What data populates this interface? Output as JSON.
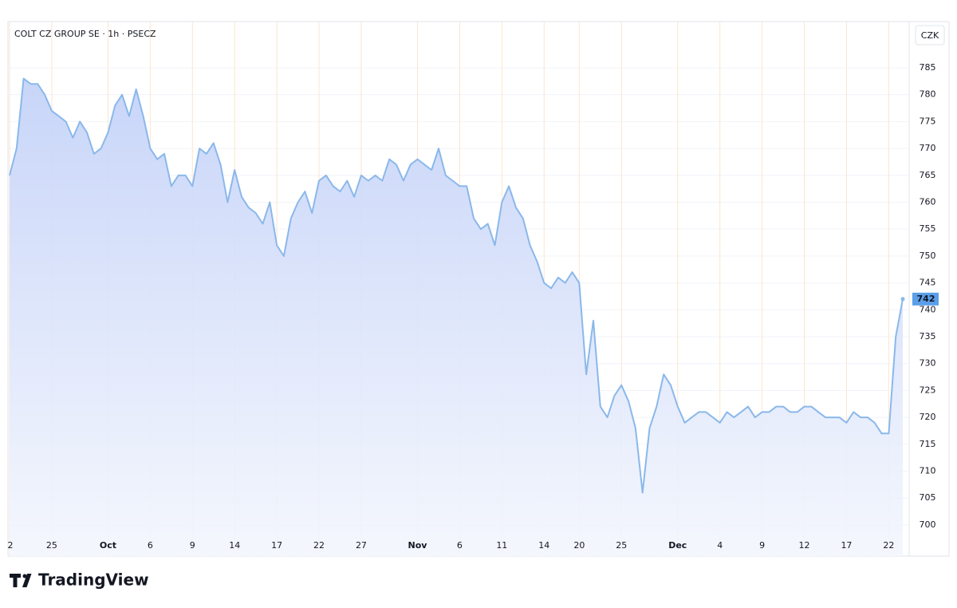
{
  "chart_data": {
    "type": "area",
    "title": "COLT CZ GROUP SE · 1h · PSECZ",
    "currency": "CZK",
    "brand": "TradingView",
    "color": "#8ab8ea",
    "grid": true,
    "ylim": [
      694.2,
      793.6
    ],
    "yticks": [
      700,
      705,
      710,
      715,
      720,
      725,
      730,
      735,
      740,
      745,
      750,
      755,
      760,
      765,
      770,
      775,
      780,
      785
    ],
    "categories": [
      "2",
      null,
      null,
      null,
      null,
      null,
      "25",
      null,
      null,
      null,
      null,
      null,
      null,
      null,
      "Oct",
      null,
      null,
      null,
      null,
      null,
      "6",
      null,
      null,
      null,
      null,
      null,
      "9",
      null,
      null,
      null,
      null,
      null,
      "14",
      null,
      null,
      null,
      null,
      null,
      "17",
      null,
      null,
      null,
      null,
      null,
      "22",
      null,
      null,
      null,
      null,
      null,
      "27",
      null,
      null,
      null,
      null,
      null,
      null,
      null,
      "Nov",
      null,
      null,
      null,
      null,
      null,
      "6",
      null,
      null,
      null,
      null,
      null,
      "11",
      null,
      null,
      null,
      null,
      null,
      "14",
      null,
      null,
      null,
      null,
      "20",
      null,
      null,
      null,
      null,
      null,
      "25",
      null,
      null,
      null,
      null,
      null,
      null,
      null,
      "Dec",
      null,
      null,
      null,
      null,
      null,
      "4",
      null,
      null,
      null,
      null,
      null,
      "9",
      null,
      null,
      null,
      null,
      null,
      "12",
      null,
      null,
      null,
      null,
      null,
      "17",
      null,
      null,
      null,
      null,
      null,
      "22",
      null,
      null
    ],
    "values": [
      765,
      770,
      783,
      782,
      782,
      780,
      777,
      776,
      775,
      772,
      775,
      773,
      769,
      770,
      773,
      778,
      780,
      776,
      781,
      776,
      770,
      768,
      769,
      763,
      765,
      765,
      763,
      770,
      769,
      771,
      767,
      760,
      766,
      761,
      759,
      758,
      756,
      760,
      752,
      750,
      757,
      760,
      762,
      758,
      764,
      765,
      763,
      762,
      764,
      761,
      765,
      764,
      765,
      764,
      768,
      767,
      764,
      767,
      768,
      767,
      766,
      770,
      765,
      764,
      763,
      763,
      757,
      755,
      756,
      752,
      760,
      763,
      759,
      757,
      752,
      749,
      745,
      744,
      746,
      745,
      747,
      745,
      728,
      738,
      722,
      720,
      724,
      726,
      723,
      718,
      706,
      718,
      722,
      728,
      726,
      722,
      719,
      720,
      721,
      721,
      720,
      719,
      721,
      720,
      721,
      722,
      720,
      721,
      721,
      722,
      722,
      721,
      721,
      722,
      722,
      721,
      720,
      720,
      720,
      719,
      721,
      720,
      720,
      719,
      717,
      717,
      735,
      742
    ]
  }
}
